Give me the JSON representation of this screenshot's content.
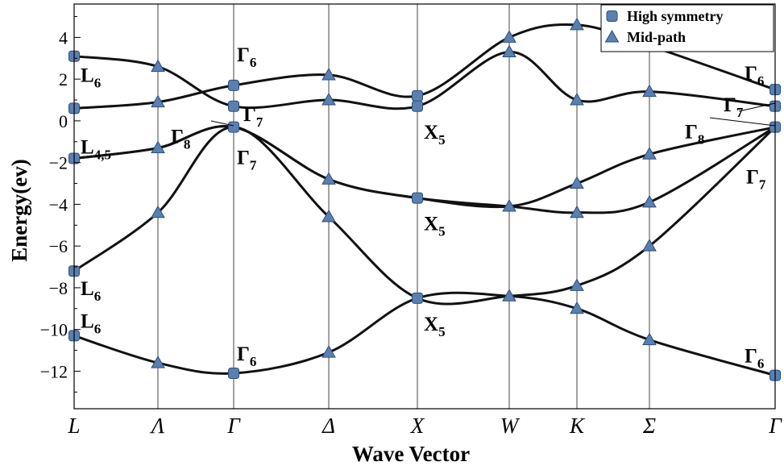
{
  "chart_data": {
    "type": "line",
    "title": "",
    "xlabel": "Wave Vector",
    "ylabel": "Energy(ev)",
    "ylim": [
      -13.8,
      5.6
    ],
    "yticks": [
      4,
      2,
      0,
      -2,
      -4,
      -6,
      -8,
      -10,
      -12
    ],
    "grid": "vertical lines at symmetry points",
    "legend_position": "top-right",
    "colors": {
      "line": "#111111",
      "marker_fill": "#5b7fae",
      "marker_stroke": "#2a4f80",
      "frame": "#000000"
    },
    "kpoints": [
      {
        "label": "L",
        "x": 0
      },
      {
        "label": "Λ",
        "x": 1
      },
      {
        "label": "Γ",
        "x": 2
      },
      {
        "label": "Δ",
        "x": 3
      },
      {
        "label": "X",
        "x": 4
      },
      {
        "label": "W",
        "x": 5
      },
      {
        "label": "K",
        "x": 6
      },
      {
        "label": "Σ",
        "x": 7
      },
      {
        "label": "Γ",
        "x": 8
      }
    ],
    "legend": [
      {
        "name": "High symmetry",
        "marker": "square"
      },
      {
        "name": "Mid-path",
        "marker": "triangle"
      }
    ],
    "bands": [
      {
        "x": [
          0,
          1,
          2,
          3,
          4,
          5,
          6,
          7,
          8
        ],
        "y": [
          -10.3,
          -11.6,
          -12.1,
          -11.1,
          -8.5,
          -8.4,
          -9.0,
          -10.5,
          -12.2
        ]
      },
      {
        "x": [
          0,
          1,
          2,
          3,
          4,
          5,
          6,
          7,
          8
        ],
        "y": [
          -7.2,
          -4.4,
          -0.3,
          -4.6,
          -8.5,
          -8.4,
          -7.9,
          -6.0,
          -0.3
        ]
      },
      {
        "x": [
          0,
          1,
          2,
          3,
          4,
          5,
          6,
          7,
          8
        ],
        "y": [
          -1.8,
          -1.3,
          -0.3,
          -2.8,
          -3.7,
          -4.1,
          -4.4,
          -3.9,
          -0.3
        ]
      },
      {
        "x": [
          0,
          1,
          2,
          3,
          4,
          5,
          6,
          7,
          8
        ],
        "y": [
          -1.8,
          -1.3,
          -0.3,
          -2.8,
          -3.7,
          -4.1,
          -3.0,
          -1.6,
          -0.3
        ]
      },
      {
        "x": [
          0,
          1,
          2,
          3,
          4,
          5,
          6,
          7,
          8
        ],
        "y": [
          0.6,
          0.9,
          1.7,
          2.2,
          1.2,
          4.0,
          4.6,
          3.6,
          1.5
        ]
      },
      {
        "x": [
          0,
          1,
          2,
          3,
          4,
          5,
          6,
          7,
          8
        ],
        "y": [
          3.1,
          2.6,
          0.7,
          1.0,
          0.7,
          3.3,
          1.0,
          1.4,
          0.7
        ]
      }
    ],
    "high_symmetry_points": [
      [
        0,
        3.1
      ],
      [
        0,
        0.6
      ],
      [
        0,
        -1.8
      ],
      [
        0,
        -7.2
      ],
      [
        0,
        -10.3
      ],
      [
        2,
        1.7
      ],
      [
        2,
        0.7
      ],
      [
        2,
        -0.3
      ],
      [
        2,
        -12.1
      ],
      [
        4,
        1.2
      ],
      [
        4,
        0.7
      ],
      [
        4,
        -3.7
      ],
      [
        4,
        -8.5
      ],
      [
        8,
        1.5
      ],
      [
        8,
        0.7
      ],
      [
        8,
        -0.3
      ],
      [
        8,
        -12.2
      ]
    ],
    "mid_path_points": [
      [
        1,
        2.6
      ],
      [
        1,
        0.9
      ],
      [
        1,
        -1.3
      ],
      [
        1,
        -4.4
      ],
      [
        1,
        -11.6
      ],
      [
        3,
        2.2
      ],
      [
        3,
        1.0
      ],
      [
        3,
        -2.8
      ],
      [
        3,
        -4.6
      ],
      [
        3,
        -11.1
      ],
      [
        5,
        4.0
      ],
      [
        5,
        3.3
      ],
      [
        5,
        -4.1
      ],
      [
        5,
        -8.4
      ],
      [
        6,
        4.6
      ],
      [
        6,
        1.0
      ],
      [
        6,
        -3.0
      ],
      [
        6,
        -4.4
      ],
      [
        6,
        -7.9
      ],
      [
        6,
        -9.0
      ],
      [
        7,
        1.4
      ],
      [
        7,
        -1.6
      ],
      [
        7,
        -3.9
      ],
      [
        7,
        -6.0
      ],
      [
        7,
        -10.5
      ]
    ],
    "annotations": [
      {
        "main": "L",
        "sub": "6",
        "x": 0,
        "y": 3.1,
        "dx": 8,
        "dy": 32
      },
      {
        "main": "L",
        "sub": "4,5",
        "x": 0,
        "y": -1.8,
        "dx": 8,
        "dy": -6
      },
      {
        "main": "L",
        "sub": "6",
        "x": 0,
        "y": -7.2,
        "dx": 8,
        "dy": 30
      },
      {
        "main": "L",
        "sub": "6",
        "x": 0,
        "y": -10.3,
        "dx": 8,
        "dy": -10
      },
      {
        "main": "Γ",
        "sub": "6",
        "x": 2,
        "y": 1.7,
        "dx": 4,
        "dy": -30
      },
      {
        "main": "Γ",
        "sub": "7",
        "x": 2,
        "y": 0.7,
        "dx": 12,
        "dy": 18
      },
      {
        "main": "Γ",
        "sub": "8",
        "x": 2,
        "y": -0.3,
        "dx": -78,
        "dy": 20
      },
      {
        "main": "Γ",
        "sub": "7",
        "x": 2,
        "y": -0.3,
        "dx": 4,
        "dy": 46
      },
      {
        "main": "Γ",
        "sub": "6",
        "x": 2,
        "y": -12.1,
        "dx": 4,
        "dy": -16
      },
      {
        "main": "X",
        "sub": "5",
        "x": 4,
        "y": 0.7,
        "dx": 8,
        "dy": 40
      },
      {
        "main": "X",
        "sub": "5",
        "x": 4,
        "y": -3.7,
        "dx": 8,
        "dy": 40
      },
      {
        "main": "X",
        "sub": "5",
        "x": 4,
        "y": -8.5,
        "dx": 8,
        "dy": 40
      },
      {
        "main": "Γ",
        "sub": "6",
        "x": 8,
        "y": 1.5,
        "dx": -38,
        "dy": -12
      },
      {
        "main": "Γ",
        "sub": "7",
        "x": 8,
        "y": 0.7,
        "dx": -64,
        "dy": 6
      },
      {
        "main": "Γ",
        "sub": "8",
        "x": 8,
        "y": -0.3,
        "dx": -112,
        "dy": 14
      },
      {
        "main": "Γ",
        "sub": "7",
        "x": 8,
        "y": -0.3,
        "dx": -36,
        "dy": 70
      },
      {
        "main": "Γ",
        "sub": "6",
        "x": 8,
        "y": -12.2,
        "dx": -38,
        "dy": -16
      }
    ]
  }
}
